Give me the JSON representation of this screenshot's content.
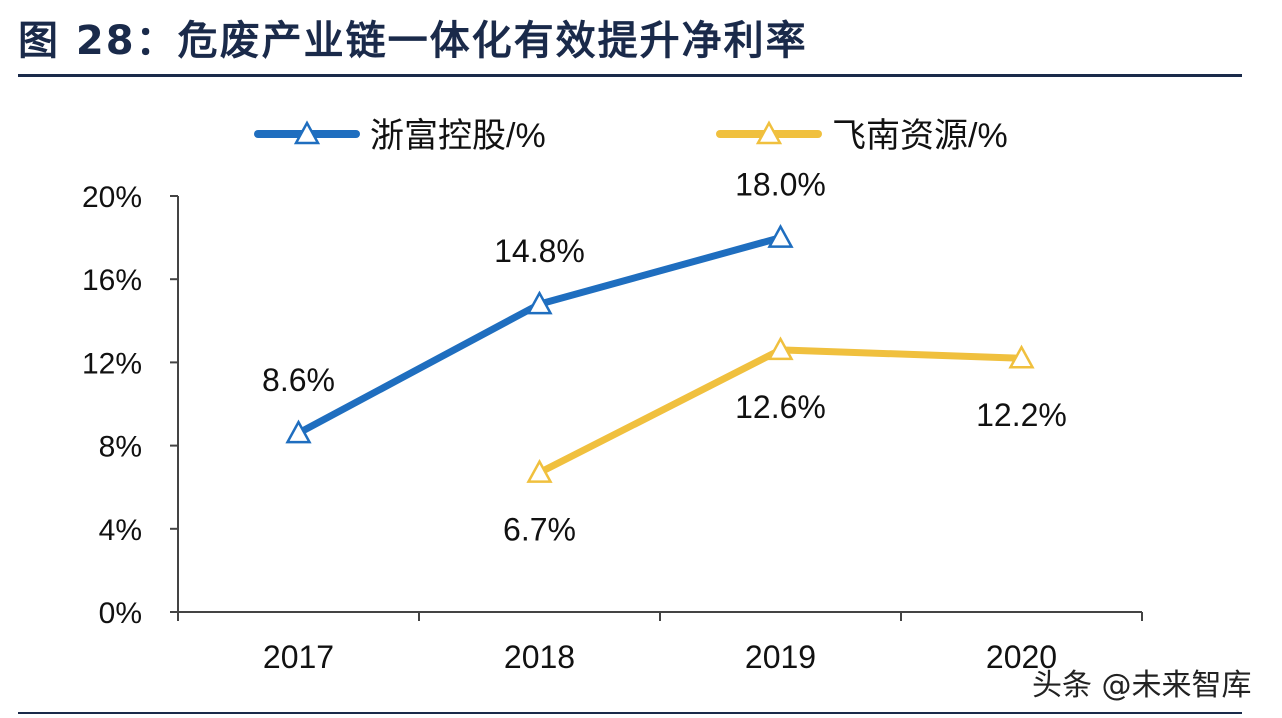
{
  "title": "图 28：危废产业链一体化有效提升净利率",
  "watermark": "头条 @未来智库",
  "chart_data": {
    "type": "line",
    "title": "",
    "xlabel": "",
    "ylabel": "",
    "categories": [
      "2017",
      "2018",
      "2019",
      "2020"
    ],
    "ylim": [
      0,
      20
    ],
    "yticks": [
      0,
      4,
      8,
      12,
      16,
      20
    ],
    "ytick_labels": [
      "0%",
      "4%",
      "8%",
      "12%",
      "16%",
      "20%"
    ],
    "grid": false,
    "legend_position": "top",
    "series": [
      {
        "name": "浙富控股/%",
        "color": "#1f6ebf",
        "values": [
          8.6,
          14.8,
          18.0,
          null
        ],
        "labels": [
          "8.6%",
          "14.8%",
          "18.0%",
          null
        ],
        "label_position": "above"
      },
      {
        "name": "飞南资源/%",
        "color": "#f0c03e",
        "values": [
          null,
          6.7,
          12.6,
          12.2
        ],
        "labels": [
          null,
          "6.7%",
          "12.6%",
          "12.2%"
        ],
        "label_position": "below"
      }
    ],
    "marker": "hollow-triangle"
  }
}
